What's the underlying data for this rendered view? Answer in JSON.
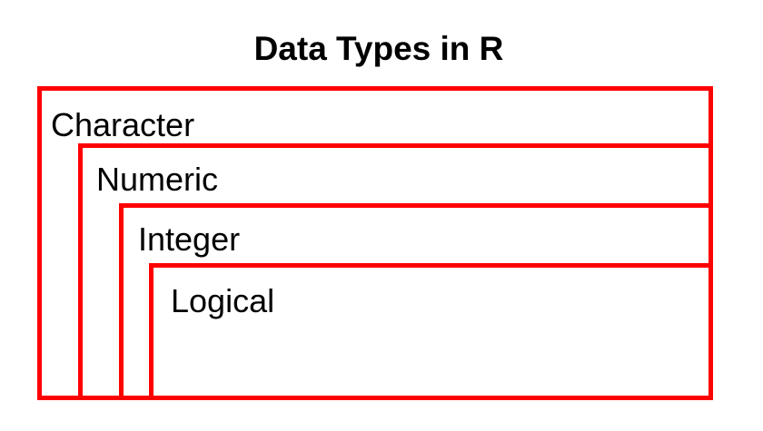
{
  "title": "Data Types in R",
  "border_color": "#ff0000",
  "types": [
    {
      "label": "Character"
    },
    {
      "label": "Numeric"
    },
    {
      "label": "Integer"
    },
    {
      "label": "Logical"
    }
  ]
}
